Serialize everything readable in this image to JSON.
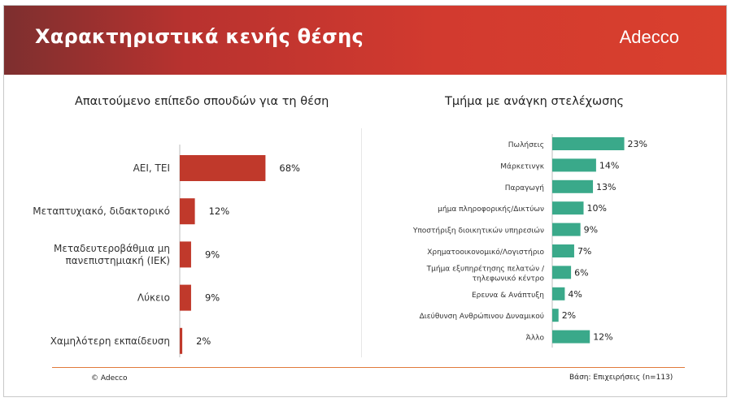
{
  "header": {
    "title": "Χαρακτηριστικά κενής θέσης",
    "logo": "Adecco"
  },
  "colors": {
    "left_bar": "#c0392b",
    "right_bar": "#3aa98a",
    "header_red": "#d23a2f",
    "footer_line": "#e07a3a"
  },
  "footer": {
    "copyright": "© Adecco",
    "base": "Βάση: Επιχειρήσεις (n=113)"
  },
  "chart_data": [
    {
      "type": "bar",
      "orientation": "horizontal",
      "title": "Απαιτούμενο επίπεδο σπουδών για τη θέση",
      "categories": [
        [
          "ΑΕΙ, ΤΕΙ"
        ],
        [
          "Μεταπτυχιακό, διδακτορικό"
        ],
        [
          "Μεταδευτεροβάθμια μη",
          "πανεπιστημιακή (ΙΕΚ)"
        ],
        [
          "Λύκειο"
        ],
        [
          "Χαμηλότερη εκπαίδευση"
        ]
      ],
      "values": [
        68,
        12,
        9,
        9,
        2
      ],
      "value_labels": [
        "68%",
        "12%",
        "9%",
        "9%",
        "2%"
      ],
      "xlim": [
        0,
        100
      ],
      "unit": "%"
    },
    {
      "type": "bar",
      "orientation": "horizontal",
      "title": "Τμήμα με ανάγκη στελέχωσης",
      "categories": [
        [
          "Πωλήσεις"
        ],
        [
          "Μάρκετινγκ"
        ],
        [
          "Παραγωγή"
        ],
        [
          "μήμα πληροφορικής/Δικτύων"
        ],
        [
          "Υποστήριξη διοικητικών υπηρεσιών"
        ],
        [
          "Χρηματοοικονομικό/Λογιστήριο"
        ],
        [
          "Τμήμα εξυπηρέτησης πελατών /",
          "τηλεφωνικό κέντρο"
        ],
        [
          "Ερευνα & Ανάπτυξη"
        ],
        [
          "Διεύθυνση Ανθρώπινου Δυναμικού"
        ],
        [
          "Άλλο"
        ]
      ],
      "values": [
        23,
        14,
        13,
        10,
        9,
        7,
        6,
        4,
        2,
        12
      ],
      "value_labels": [
        "23%",
        "14%",
        "13%",
        "10%",
        "9%",
        "7%",
        "6%",
        "4%",
        "2%",
        "12%"
      ],
      "xlim": [
        0,
        100
      ],
      "unit": "%"
    }
  ]
}
